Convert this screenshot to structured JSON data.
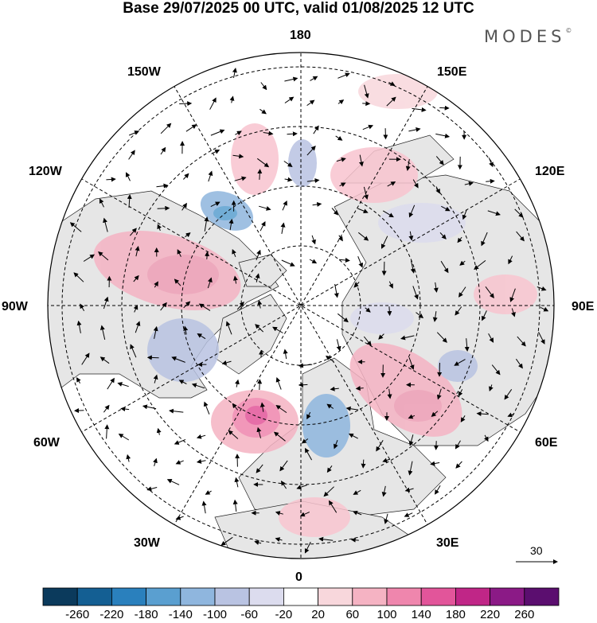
{
  "header": {
    "title": "Base 29/07/2025 00 UTC, valid 01/08/2025 12 UTC",
    "brand": "MODES",
    "brand_mark": "©"
  },
  "map": {
    "projection": "north-polar-stereographic",
    "longitude_labels": {
      "top": "180",
      "bottom": "0",
      "left": "90W",
      "right": "90E",
      "upper_left_near": "150W",
      "upper_left_far": "120W",
      "upper_right_near": "150E",
      "upper_right_far": "120E",
      "lower_left_far": "60W",
      "lower_left_near": "30W",
      "lower_right_far": "60E",
      "lower_right_near": "30E"
    },
    "reference_vector": {
      "label": "30"
    }
  },
  "colorbar": {
    "ticks": [
      "-260",
      "-220",
      "-180",
      "-140",
      "-100",
      "-60",
      "-20",
      "20",
      "60",
      "100",
      "140",
      "180",
      "220",
      "260"
    ],
    "colors": [
      "#0b3a5c",
      "#145f93",
      "#2a80bd",
      "#5a9fd0",
      "#8fb6de",
      "#b9c3e2",
      "#dcdcee",
      "#ffffff",
      "#f8d7dc",
      "#f5b3c3",
      "#ef86ad",
      "#e2559a",
      "#c02687",
      "#8b1a86",
      "#5b0e6f"
    ]
  }
}
